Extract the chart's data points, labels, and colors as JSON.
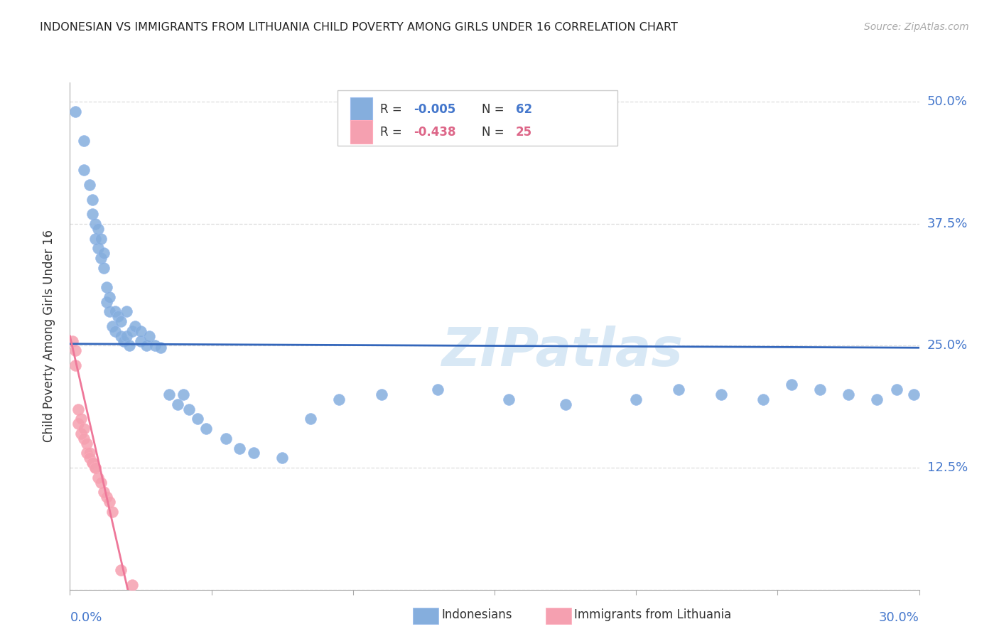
{
  "title": "INDONESIAN VS IMMIGRANTS FROM LITHUANIA CHILD POVERTY AMONG GIRLS UNDER 16 CORRELATION CHART",
  "source": "Source: ZipAtlas.com",
  "ylabel": "Child Poverty Among Girls Under 16",
  "ytick_vals": [
    0.0,
    0.125,
    0.25,
    0.375,
    0.5
  ],
  "ytick_labels": [
    "",
    "12.5%",
    "25.0%",
    "37.5%",
    "50.0%"
  ],
  "xtick_labels": [
    "0.0%",
    "",
    "",
    "",
    "",
    "",
    "30.0%"
  ],
  "blue_color": "#85AEDD",
  "pink_color": "#F5A0B0",
  "text_color_blue": "#4477CC",
  "text_color_pink": "#DD6688",
  "line_blue": "#3366BB",
  "line_pink": "#EE7799",
  "watermark": "ZIPatlas",
  "watermark_color": "#D8E8F5",
  "grid_color": "#DDDDDD",
  "legend_r1": "R = ",
  "legend_v1": "-0.005",
  "legend_n1_label": "N = ",
  "legend_n1": "62",
  "legend_r2": "R = ",
  "legend_v2": "-0.438",
  "legend_n2_label": "N = ",
  "legend_n2": "25",
  "indonesians_label": "Indonesians",
  "lithuania_label": "Immigrants from Lithuania",
  "indonesians_x": [
    0.002,
    0.005,
    0.005,
    0.007,
    0.008,
    0.008,
    0.009,
    0.009,
    0.01,
    0.01,
    0.011,
    0.011,
    0.012,
    0.012,
    0.013,
    0.013,
    0.014,
    0.014,
    0.015,
    0.016,
    0.016,
    0.017,
    0.018,
    0.018,
    0.019,
    0.02,
    0.02,
    0.021,
    0.022,
    0.023,
    0.025,
    0.025,
    0.027,
    0.028,
    0.03,
    0.032,
    0.035,
    0.038,
    0.04,
    0.042,
    0.045,
    0.048,
    0.055,
    0.06,
    0.065,
    0.075,
    0.085,
    0.095,
    0.11,
    0.13,
    0.155,
    0.175,
    0.2,
    0.215,
    0.23,
    0.245,
    0.255,
    0.265,
    0.275,
    0.285,
    0.292,
    0.298
  ],
  "indonesians_y": [
    0.49,
    0.46,
    0.43,
    0.415,
    0.4,
    0.385,
    0.375,
    0.36,
    0.35,
    0.37,
    0.34,
    0.36,
    0.33,
    0.345,
    0.31,
    0.295,
    0.285,
    0.3,
    0.27,
    0.285,
    0.265,
    0.28,
    0.26,
    0.275,
    0.255,
    0.26,
    0.285,
    0.25,
    0.265,
    0.27,
    0.255,
    0.265,
    0.25,
    0.26,
    0.25,
    0.248,
    0.2,
    0.19,
    0.2,
    0.185,
    0.175,
    0.165,
    0.155,
    0.145,
    0.14,
    0.135,
    0.175,
    0.195,
    0.2,
    0.205,
    0.195,
    0.19,
    0.195,
    0.205,
    0.2,
    0.195,
    0.21,
    0.205,
    0.2,
    0.195,
    0.205,
    0.2
  ],
  "lithuania_x": [
    0.001,
    0.002,
    0.002,
    0.003,
    0.003,
    0.004,
    0.004,
    0.005,
    0.005,
    0.006,
    0.006,
    0.007,
    0.007,
    0.008,
    0.008,
    0.009,
    0.009,
    0.01,
    0.011,
    0.012,
    0.013,
    0.014,
    0.015,
    0.018,
    0.022
  ],
  "lithuania_y": [
    0.255,
    0.245,
    0.23,
    0.185,
    0.17,
    0.175,
    0.16,
    0.165,
    0.155,
    0.15,
    0.14,
    0.14,
    0.135,
    0.13,
    0.13,
    0.125,
    0.125,
    0.115,
    0.11,
    0.1,
    0.095,
    0.09,
    0.08,
    0.02,
    0.005
  ]
}
